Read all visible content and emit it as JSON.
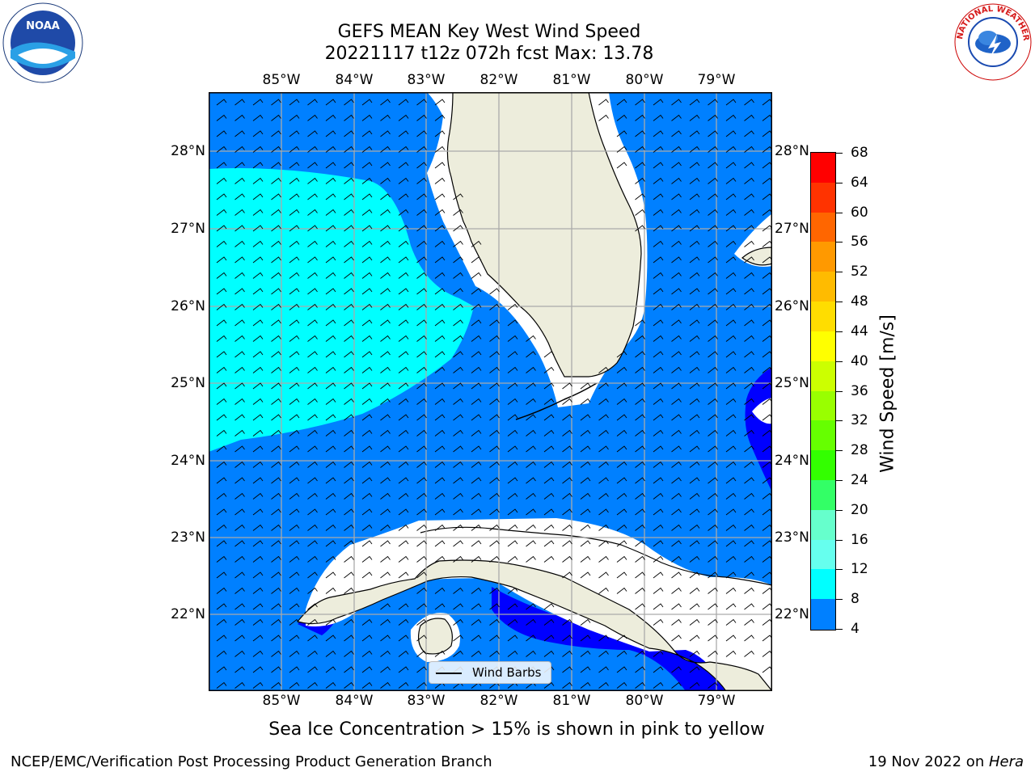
{
  "title_line1": "GEFS MEAN Key West Wind Speed",
  "title_line2": "20221117 t12z 072h fcst   Max: 13.78",
  "lon_labels": [
    "85°W",
    "84°W",
    "83°W",
    "82°W",
    "81°W",
    "80°W",
    "79°W"
  ],
  "lat_labels": [
    "28°N",
    "27°N",
    "26°N",
    "25°N",
    "24°N",
    "23°N",
    "22°N"
  ],
  "colorbar": {
    "label": "Wind Speed [m/s]",
    "ticks": [
      "68",
      "64",
      "60",
      "56",
      "52",
      "48",
      "44",
      "40",
      "36",
      "32",
      "28",
      "24",
      "20",
      "16",
      "12",
      "8",
      "4"
    ],
    "colors": [
      "#ff0000",
      "#ff3300",
      "#ff6600",
      "#ff9900",
      "#ffbb00",
      "#ffdd00",
      "#ffff00",
      "#ccff00",
      "#99ff00",
      "#66ff00",
      "#33ff00",
      "#33ff66",
      "#66ffcc",
      "#66ffee",
      "#00ffff",
      "#0080ff",
      "#0000ff"
    ]
  },
  "legend_label": "Wind Barbs",
  "note": "Sea Ice Concentration > 15% is shown in pink to yellow",
  "footer_left": "NCEP/EMC/Verification Post Processing Product Generation Branch",
  "footer_right_date": "19 Nov 2022 on ",
  "footer_right_host": "Hera",
  "logos": {
    "left": "NOAA",
    "right": "NATIONAL WEATHER SERVICE"
  }
}
